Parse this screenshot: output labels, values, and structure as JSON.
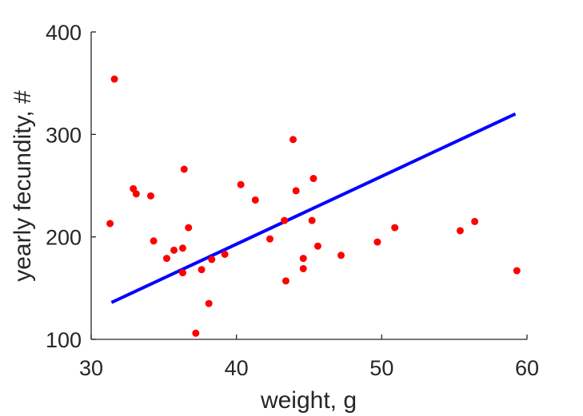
{
  "chart_data": {
    "type": "scatter",
    "title": "",
    "xlabel": "weight, g",
    "ylabel": "yearly fecundity, #",
    "xlim": [
      30,
      60
    ],
    "ylim": [
      100,
      400
    ],
    "xticks": [
      30,
      40,
      50,
      60
    ],
    "yticks": [
      100,
      200,
      300,
      400
    ],
    "grid": false,
    "legend": "none",
    "series": [
      {
        "type": "scatter",
        "color": "#ff0000",
        "points": [
          [
            31.3,
            213
          ],
          [
            31.6,
            354
          ],
          [
            32.9,
            247
          ],
          [
            33.1,
            242
          ],
          [
            34.1,
            240
          ],
          [
            34.3,
            196
          ],
          [
            35.2,
            179
          ],
          [
            35.7,
            187
          ],
          [
            36.3,
            189
          ],
          [
            36.3,
            165
          ],
          [
            36.4,
            266
          ],
          [
            36.7,
            209
          ],
          [
            37.2,
            106
          ],
          [
            37.6,
            168
          ],
          [
            38.1,
            135
          ],
          [
            38.3,
            178
          ],
          [
            39.2,
            183
          ],
          [
            40.3,
            251
          ],
          [
            41.3,
            236
          ],
          [
            42.3,
            198
          ],
          [
            43.3,
            216
          ],
          [
            43.4,
            157
          ],
          [
            43.9,
            295
          ],
          [
            44.1,
            245
          ],
          [
            44.6,
            169
          ],
          [
            44.6,
            179
          ],
          [
            45.2,
            216
          ],
          [
            45.3,
            257
          ],
          [
            45.6,
            191
          ],
          [
            47.2,
            182
          ],
          [
            49.7,
            195
          ],
          [
            50.9,
            209
          ],
          [
            55.4,
            206
          ],
          [
            56.4,
            215
          ],
          [
            59.3,
            167
          ]
        ]
      },
      {
        "type": "line",
        "color": "#0000ff",
        "points": [
          [
            31.4,
            136
          ],
          [
            59.2,
            320
          ]
        ]
      }
    ]
  }
}
